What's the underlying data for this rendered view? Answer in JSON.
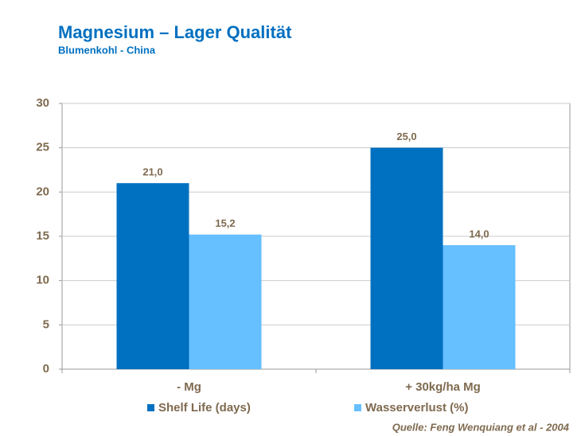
{
  "chart_data": {
    "type": "bar",
    "title": "Magnesium – Lager Qualität",
    "subtitle": "Blumenkohl - China",
    "source": "Quelle: Feng Wenquiang et al - 2004",
    "categories": [
      "- Mg",
      "+ 30kg/ha Mg"
    ],
    "series": [
      {
        "name": "Shelf Life (days)",
        "color": "#0070c0",
        "values": [
          21.0,
          25.0
        ],
        "value_labels": [
          "21,0",
          "25,0"
        ]
      },
      {
        "name": "Wasserverlust (%)",
        "color": "#66bfff",
        "values": [
          15.2,
          14.0
        ],
        "value_labels": [
          "15,2",
          "14,0"
        ]
      }
    ],
    "ylim": [
      0,
      30
    ],
    "yticks": [
      0,
      5,
      10,
      15,
      20,
      25,
      30
    ],
    "grid": true,
    "legend": "bottom"
  }
}
